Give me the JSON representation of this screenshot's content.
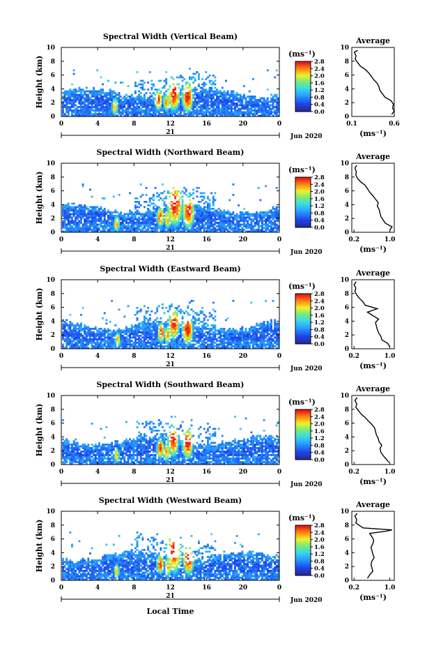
{
  "chart_data": [
    {
      "type": "heatmap",
      "title": "Spectral Width (Vertical Beam)",
      "ylabel": "Height (km)",
      "xticks": [
        "0",
        "4",
        "8",
        "12",
        "16",
        "20",
        "0"
      ],
      "yticks": [
        "0",
        "2",
        "4",
        "6",
        "8",
        "10"
      ],
      "date_day": "21",
      "date_label": "Jun 2020",
      "colorbar_unit": "(ms⁻¹)",
      "colorbar_ticks": [
        "2.8",
        "2.4",
        "2.0",
        "1.6",
        "1.2",
        "0.8",
        "0.4",
        "0.0"
      ],
      "profile": {
        "title": "Average",
        "xlabel": "(ms⁻¹)",
        "xticks": [
          "0.1",
          "0.6"
        ],
        "yticks": [
          "0",
          "2",
          "4",
          "6",
          "8",
          "10"
        ],
        "xlim": [
          0.1,
          0.6
        ],
        "height_km": [
          0.3,
          0.8,
          1.2,
          1.8,
          2.3,
          2.8,
          3.3,
          3.8,
          4.3,
          4.8,
          5.3,
          5.8,
          6.3,
          6.8,
          7.3,
          7.8,
          8.3,
          8.8,
          9.3,
          9.6
        ],
        "width": [
          0.57,
          0.6,
          0.58,
          0.59,
          0.56,
          0.49,
          0.46,
          0.43,
          0.42,
          0.4,
          0.36,
          0.33,
          0.3,
          0.26,
          0.2,
          0.17,
          0.14,
          0.15,
          0.13,
          0.17
        ]
      },
      "cells": [
        {
          "hour": 5.8,
          "height_km": 1.6,
          "level": 0.8,
          "size": 1.2
        },
        {
          "hour": 10.6,
          "height_km": 2.6,
          "level": 0.95,
          "size": 1.4
        },
        {
          "hour": 12.3,
          "height_km": 3.4,
          "level": 1.0,
          "size": 2.2
        },
        {
          "hour": 13.8,
          "height_km": 3.0,
          "level": 1.0,
          "size": 2.0
        },
        {
          "hour": 11.5,
          "height_km": 2.2,
          "level": 0.85,
          "size": 1.2
        }
      ]
    },
    {
      "type": "heatmap",
      "title": "Spectral Width (Northward Beam)",
      "ylabel": "Height (km)",
      "xticks": [
        "0",
        "4",
        "8",
        "12",
        "16",
        "20",
        "0"
      ],
      "yticks": [
        "0",
        "2",
        "4",
        "6",
        "8",
        "10"
      ],
      "date_day": "21",
      "date_label": "Jun 2020",
      "colorbar_unit": "(ms⁻¹)",
      "colorbar_ticks": [
        "2.8",
        "2.4",
        "2.0",
        "1.6",
        "1.2",
        "0.8",
        "0.4",
        "0.0"
      ],
      "profile": {
        "title": "Average",
        "xlabel": "(ms⁻¹)",
        "xticks": [
          "0.2",
          "1.0"
        ],
        "yticks": [
          "0",
          "2",
          "4",
          "6",
          "8",
          "10"
        ],
        "xlim": [
          0.15,
          1.1
        ],
        "height_km": [
          0.3,
          0.8,
          1.3,
          1.8,
          2.3,
          2.8,
          3.3,
          3.8,
          4.3,
          4.8,
          5.3,
          5.8,
          6.3,
          6.8,
          7.3,
          7.8,
          8.3,
          8.8,
          9.3,
          9.7
        ],
        "width": [
          1.0,
          1.05,
          0.9,
          0.85,
          0.8,
          0.78,
          0.76,
          0.72,
          0.74,
          0.68,
          0.62,
          0.55,
          0.5,
          0.45,
          0.35,
          0.28,
          0.24,
          0.25,
          0.22,
          0.26
        ]
      },
      "cells": [
        {
          "hour": 6.0,
          "height_km": 1.4,
          "level": 0.8,
          "size": 1.1
        },
        {
          "hour": 10.8,
          "height_km": 2.4,
          "level": 0.95,
          "size": 1.3
        },
        {
          "hour": 12.4,
          "height_km": 4.2,
          "level": 1.0,
          "size": 2.8
        },
        {
          "hour": 13.9,
          "height_km": 3.2,
          "level": 1.0,
          "size": 2.2
        },
        {
          "hour": 11.6,
          "height_km": 2.0,
          "level": 0.85,
          "size": 1.2
        }
      ]
    },
    {
      "type": "heatmap",
      "title": "Spectral Width (Eastward Beam)",
      "ylabel": "Height (km)",
      "xticks": [
        "0",
        "4",
        "8",
        "12",
        "16",
        "20",
        "0"
      ],
      "yticks": [
        "0",
        "2",
        "4",
        "6",
        "8",
        "10"
      ],
      "date_day": "21",
      "date_label": "Jun 2020",
      "colorbar_unit": "(ms⁻¹)",
      "colorbar_ticks": [
        "2.8",
        "2.4",
        "2.0",
        "1.6",
        "1.2",
        "0.8",
        "0.4",
        "0.0"
      ],
      "profile": {
        "title": "Average",
        "xlabel": "(ms⁻¹)",
        "xticks": [
          "0.2",
          "1.0"
        ],
        "yticks": [
          "0",
          "2",
          "4",
          "6",
          "8",
          "10"
        ],
        "xlim": [
          0.15,
          1.1
        ],
        "height_km": [
          0.3,
          0.8,
          1.3,
          1.8,
          2.3,
          2.8,
          3.3,
          3.8,
          4.3,
          4.8,
          5.3,
          5.8,
          6.3,
          6.8,
          7.3,
          7.8,
          8.3,
          8.8,
          9.3,
          9.7
        ],
        "width": [
          1.0,
          0.95,
          0.82,
          0.8,
          0.75,
          0.72,
          0.7,
          0.68,
          0.75,
          0.62,
          0.5,
          0.72,
          0.45,
          0.4,
          0.32,
          0.26,
          0.22,
          0.24,
          0.2,
          0.25
        ]
      },
      "cells": [
        {
          "hour": 6.1,
          "height_km": 1.5,
          "level": 0.8,
          "size": 1.0
        },
        {
          "hour": 10.9,
          "height_km": 2.5,
          "level": 0.95,
          "size": 1.3
        },
        {
          "hour": 12.3,
          "height_km": 3.8,
          "level": 1.0,
          "size": 2.0
        },
        {
          "hour": 13.8,
          "height_km": 3.0,
          "level": 1.0,
          "size": 2.0
        },
        {
          "hour": 11.6,
          "height_km": 2.1,
          "level": 0.85,
          "size": 1.2
        }
      ]
    },
    {
      "type": "heatmap",
      "title": "Spectral Width (Southward Beam)",
      "ylabel": "Height (km)",
      "xticks": [
        "0",
        "4",
        "8",
        "12",
        "16",
        "20",
        "0"
      ],
      "yticks": [
        "0",
        "2",
        "4",
        "6",
        "8",
        "10"
      ],
      "date_day": "21",
      "date_label": "Jun 2020",
      "colorbar_unit": "(ms⁻¹)",
      "colorbar_ticks": [
        "2.8",
        "2.4",
        "2.0",
        "1.6",
        "1.2",
        "0.8",
        "0.4",
        "0.0"
      ],
      "profile": {
        "title": "Average",
        "xlabel": "(ms⁻¹)",
        "xticks": [
          "0.2",
          "1.0"
        ],
        "yticks": [
          "0",
          "2",
          "4",
          "6",
          "8",
          "10"
        ],
        "xlim": [
          0.15,
          1.1
        ],
        "height_km": [
          0.3,
          0.8,
          1.3,
          1.8,
          2.3,
          2.8,
          3.3,
          3.8,
          4.3,
          4.8,
          5.3,
          5.8,
          6.3,
          6.8,
          7.3,
          7.8,
          8.3,
          8.8,
          9.3,
          9.7
        ],
        "width": [
          0.98,
          0.92,
          0.85,
          0.8,
          0.78,
          0.82,
          0.76,
          0.74,
          0.7,
          0.68,
          0.66,
          0.6,
          0.52,
          0.45,
          0.36,
          0.3,
          0.24,
          0.26,
          0.22,
          0.27
        ]
      },
      "cells": [
        {
          "hour": 6.0,
          "height_km": 1.5,
          "level": 0.8,
          "size": 1.0
        },
        {
          "hour": 10.8,
          "height_km": 2.5,
          "level": 0.95,
          "size": 1.3
        },
        {
          "hour": 12.2,
          "height_km": 3.6,
          "level": 1.0,
          "size": 2.0
        },
        {
          "hour": 13.8,
          "height_km": 3.2,
          "level": 1.0,
          "size": 2.0
        },
        {
          "hour": 11.5,
          "height_km": 2.0,
          "level": 0.85,
          "size": 1.2
        }
      ]
    },
    {
      "type": "heatmap",
      "title": "Spectral Width (Westward Beam)",
      "ylabel": "Height (km)",
      "xlabel": "Local Time",
      "xticks": [
        "0",
        "4",
        "8",
        "12",
        "16",
        "20",
        "0"
      ],
      "yticks": [
        "0",
        "2",
        "4",
        "6",
        "8",
        "10"
      ],
      "date_day": "21",
      "date_label": "Jun 2020",
      "colorbar_unit": "(ms⁻¹)",
      "colorbar_ticks": [
        "2.8",
        "2.4",
        "2.0",
        "1.6",
        "1.2",
        "0.8",
        "0.4",
        "0.0"
      ],
      "profile": {
        "title": "Average",
        "xlabel": "(ms⁻¹)",
        "xticks": [
          "0.2",
          "1.0"
        ],
        "yticks": [
          "0",
          "2",
          "4",
          "6",
          "8",
          "10"
        ],
        "xlim": [
          0.15,
          1.1
        ],
        "height_km": [
          0.3,
          0.8,
          1.3,
          1.8,
          2.3,
          2.8,
          3.3,
          3.8,
          4.3,
          4.8,
          5.3,
          5.8,
          6.3,
          6.8,
          7.1,
          7.3,
          7.6,
          8.3,
          8.8,
          9.3,
          9.7
        ],
        "width": [
          0.5,
          0.55,
          0.62,
          0.6,
          0.58,
          0.6,
          0.65,
          0.62,
          0.6,
          0.58,
          0.62,
          0.64,
          0.6,
          0.55,
          0.9,
          1.05,
          0.4,
          0.24,
          0.26,
          0.22,
          0.27
        ]
      },
      "cells": [
        {
          "hour": 6.0,
          "height_km": 1.5,
          "level": 0.8,
          "size": 1.0
        },
        {
          "hour": 10.8,
          "height_km": 2.5,
          "level": 0.95,
          "size": 1.3
        },
        {
          "hour": 12.3,
          "height_km": 4.4,
          "level": 1.0,
          "size": 2.8
        },
        {
          "hour": 13.9,
          "height_km": 3.2,
          "level": 1.0,
          "size": 2.0
        },
        {
          "hour": 11.6,
          "height_km": 2.0,
          "level": 0.85,
          "size": 1.2
        }
      ]
    }
  ]
}
